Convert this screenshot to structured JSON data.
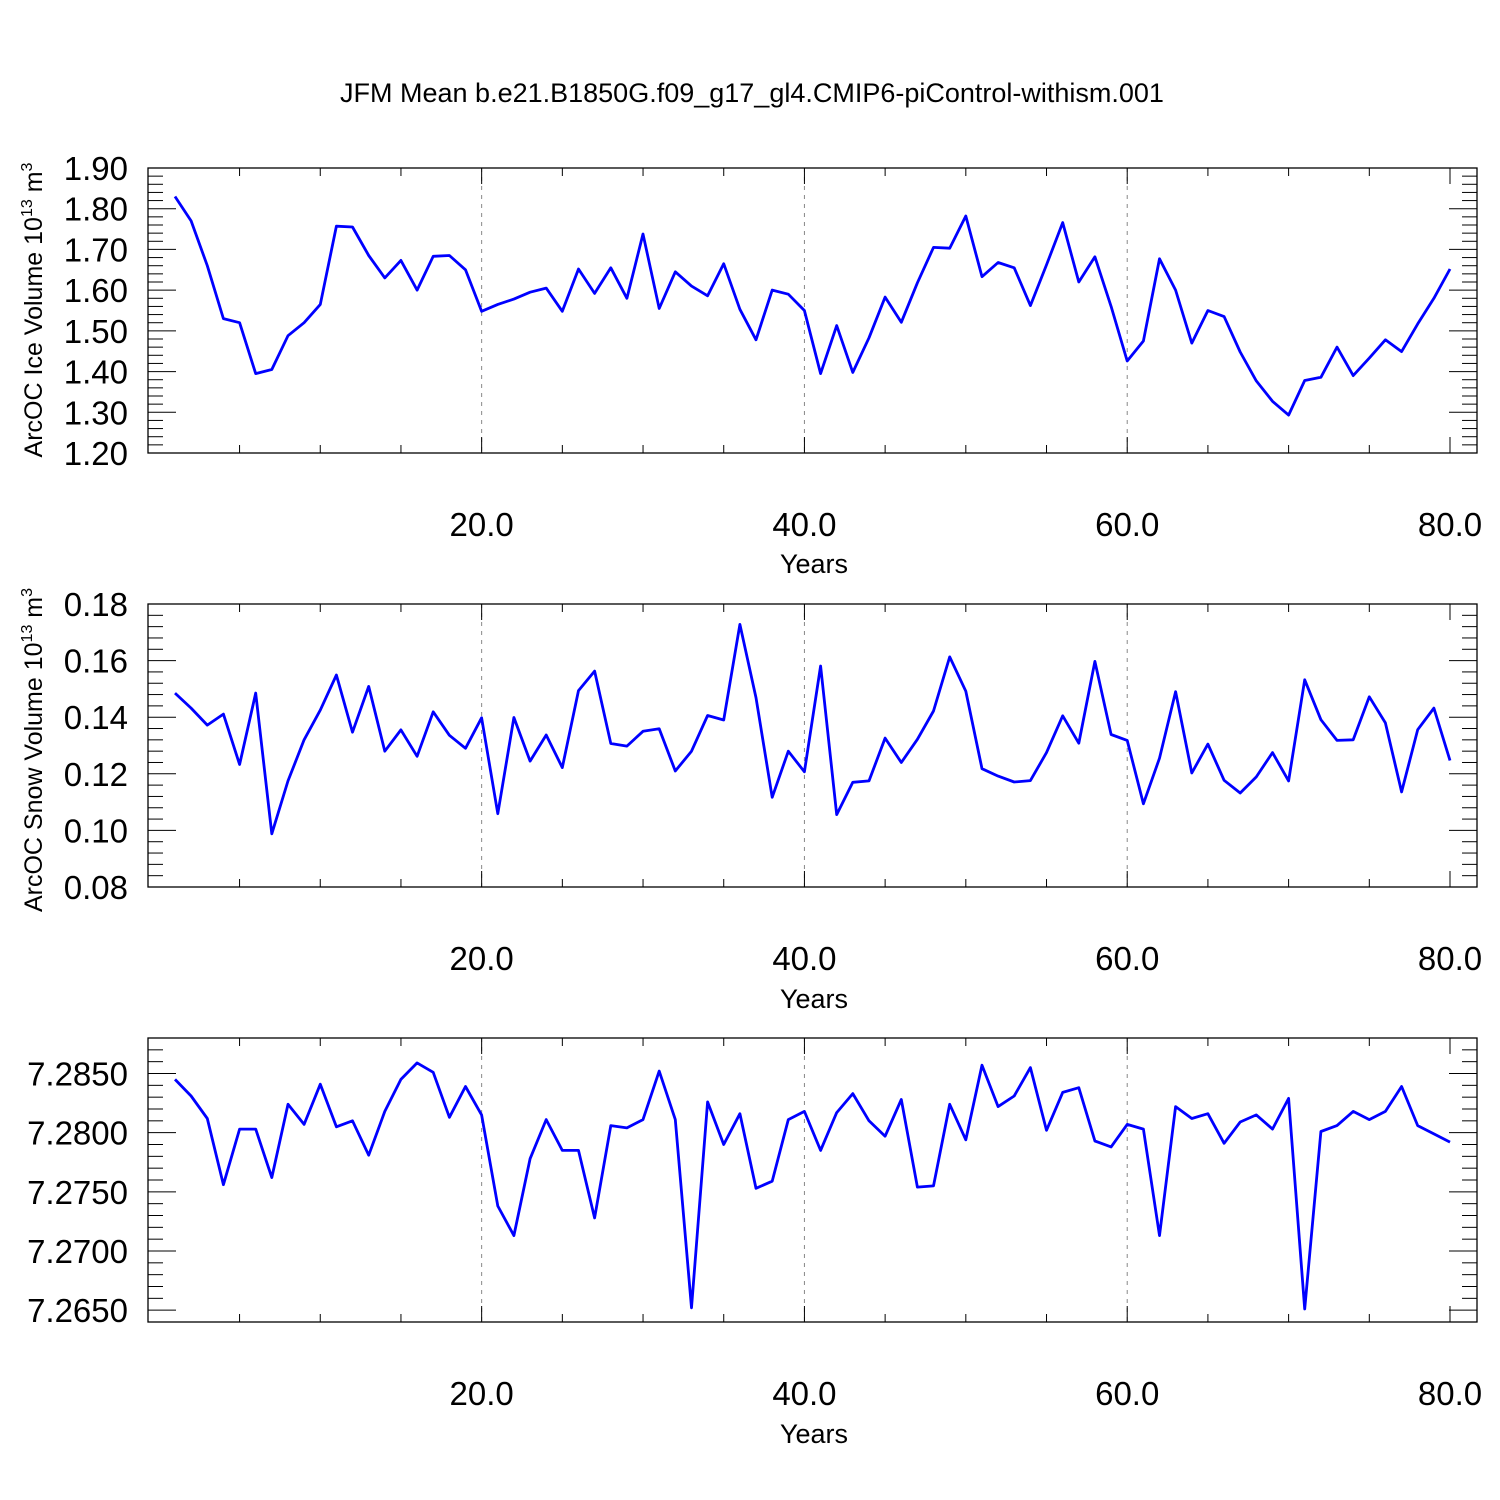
{
  "title": "JFM Mean b.e21.B1850G.f09_g17_gl4.CMIP6-piControl-withism.001",
  "chart_data": [
    {
      "type": "line",
      "title": "",
      "xlabel": "Years",
      "ylabel": "ArcOC Ice Volume 10",
      "ylabel_exp": "13",
      "ylabel_unit": " m",
      "ylabel_unit_exp": "3",
      "xlim": [
        1,
        80
      ],
      "ylim": [
        1.2,
        1.9
      ],
      "xticks": [
        20,
        40,
        60,
        80
      ],
      "xtick_labels": [
        "20.0",
        "40.0",
        "60.0",
        "80.0"
      ],
      "yticks": [
        1.2,
        1.3,
        1.4,
        1.5,
        1.6,
        1.7,
        1.8,
        1.9
      ],
      "ytick_labels": [
        "1.20",
        "1.30",
        "1.40",
        "1.50",
        "1.60",
        "1.70",
        "1.80",
        "1.90"
      ],
      "grid": "vertical dashed at major x ticks",
      "color": "#0000ff",
      "x_start": 1,
      "values": [
        1.83,
        1.77,
        1.66,
        1.53,
        1.52,
        1.395,
        1.405,
        1.488,
        1.52,
        1.565,
        1.757,
        1.755,
        1.685,
        1.63,
        1.673,
        1.6,
        1.683,
        1.685,
        1.65,
        1.548,
        1.565,
        1.578,
        1.595,
        1.605,
        1.548,
        1.652,
        1.592,
        1.655,
        1.58,
        1.738,
        1.555,
        1.645,
        1.61,
        1.586,
        1.665,
        1.553,
        1.478,
        1.6,
        1.59,
        1.55,
        1.395,
        1.513,
        1.398,
        1.483,
        1.583,
        1.521,
        1.618,
        1.705,
        1.703,
        1.782,
        1.633,
        1.668,
        1.655,
        1.562,
        1.662,
        1.766,
        1.62,
        1.682,
        1.56,
        1.426,
        1.475,
        1.677,
        1.6,
        1.47,
        1.55,
        1.535,
        1.448,
        1.377,
        1.327,
        1.293,
        1.378,
        1.386,
        1.46,
        1.39,
        1.433,
        1.478,
        1.449,
        1.517,
        1.58,
        1.652
      ]
    },
    {
      "type": "line",
      "title": "",
      "xlabel": "Years",
      "ylabel": "ArcOC Snow Volume 10",
      "ylabel_exp": "13",
      "ylabel_unit": " m",
      "ylabel_unit_exp": "3",
      "xlim": [
        1,
        80
      ],
      "ylim": [
        0.08,
        0.18
      ],
      "xticks": [
        20,
        40,
        60,
        80
      ],
      "xtick_labels": [
        "20.0",
        "40.0",
        "60.0",
        "80.0"
      ],
      "yticks": [
        0.08,
        0.1,
        0.12,
        0.14,
        0.16,
        0.18
      ],
      "ytick_labels": [
        "0.08",
        "0.10",
        "0.12",
        "0.14",
        "0.16",
        "0.18"
      ],
      "grid": "vertical dashed at major x ticks",
      "color": "#0000ff",
      "x_start": 1,
      "values": [
        0.1485,
        0.1432,
        0.1372,
        0.1411,
        0.1233,
        0.1485,
        0.0988,
        0.1175,
        0.132,
        0.1425,
        0.1549,
        0.1347,
        0.1509,
        0.128,
        0.1355,
        0.1262,
        0.1419,
        0.1336,
        0.129,
        0.1398,
        0.1059,
        0.1399,
        0.1245,
        0.1337,
        0.1222,
        0.1494,
        0.1563,
        0.1307,
        0.1298,
        0.135,
        0.1359,
        0.121,
        0.128,
        0.1406,
        0.139,
        0.1728,
        0.1469,
        0.1117,
        0.128,
        0.1207,
        0.1581,
        0.1056,
        0.117,
        0.1175,
        0.1326,
        0.124,
        0.1322,
        0.1422,
        0.1613,
        0.1492,
        0.1218,
        0.1192,
        0.1171,
        0.1176,
        0.1275,
        0.1405,
        0.1308,
        0.1597,
        0.1339,
        0.1318,
        0.1094,
        0.1255,
        0.149,
        0.1203,
        0.1305,
        0.1177,
        0.1132,
        0.1189,
        0.1275,
        0.1175,
        0.1532,
        0.1391,
        0.1318,
        0.132,
        0.1472,
        0.138,
        0.1136,
        0.1356,
        0.1432,
        0.1247
      ]
    },
    {
      "type": "line",
      "title": "",
      "xlabel": "Years",
      "ylabel": "",
      "xlim": [
        1,
        80
      ],
      "ylim": [
        7.264,
        7.288
      ],
      "xticks": [
        20,
        40,
        60,
        80
      ],
      "xtick_labels": [
        "20.0",
        "40.0",
        "60.0",
        "80.0"
      ],
      "yticks": [
        7.265,
        7.27,
        7.275,
        7.28,
        7.285
      ],
      "ytick_labels": [
        "7.2650",
        "7.2700",
        "7.2750",
        "7.2800",
        "7.2850"
      ],
      "grid": "vertical dashed at major x ticks",
      "color": "#0000ff",
      "x_start": 1,
      "values": [
        7.2845,
        7.2831,
        7.2812,
        7.2756,
        7.2803,
        7.2803,
        7.2762,
        7.2824,
        7.2807,
        7.2841,
        7.2805,
        7.281,
        7.2781,
        7.2818,
        7.2845,
        7.2859,
        7.2851,
        7.2813,
        7.2839,
        7.2815,
        7.2738,
        7.2713,
        7.2778,
        7.2811,
        7.2785,
        7.2785,
        7.2728,
        7.2806,
        7.2804,
        7.2811,
        7.2852,
        7.2811,
        7.2652,
        7.2826,
        7.279,
        7.2816,
        7.2753,
        7.2759,
        7.2811,
        7.2818,
        7.2785,
        7.2817,
        7.2833,
        7.281,
        7.2797,
        7.2828,
        7.2754,
        7.2755,
        7.2824,
        7.2794,
        7.2857,
        7.2822,
        7.2831,
        7.2855,
        7.2802,
        7.2834,
        7.2838,
        7.2793,
        7.2788,
        7.2807,
        7.2803,
        7.2713,
        7.2822,
        7.2812,
        7.2816,
        7.2791,
        7.2809,
        7.2815,
        7.2803,
        7.2829,
        7.2651,
        7.2801,
        7.2806,
        7.2818,
        7.2811,
        7.2818,
        7.2839,
        7.2806,
        7.2799,
        7.2792
      ]
    }
  ]
}
